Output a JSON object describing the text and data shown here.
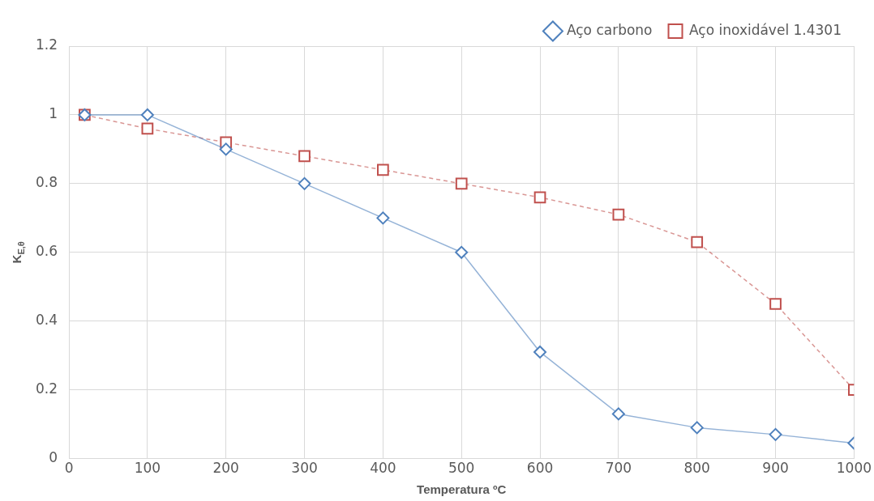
{
  "chart_data": {
    "type": "line",
    "xlabel": "Temperatura ºC",
    "ylabel": "K$_{E,θ}$",
    "x": [
      20,
      100,
      200,
      300,
      400,
      500,
      600,
      700,
      800,
      900,
      1000
    ],
    "series": [
      {
        "name": "Aço carbono",
        "color": "#4f81bd",
        "marker": "diamond",
        "line_style": "solid",
        "values": [
          1,
          1,
          0.9,
          0.8,
          0.7,
          0.6,
          0.31,
          0.13,
          0.09,
          0.07,
          0.045
        ]
      },
      {
        "name": "Aço inoxidável 1.4301",
        "color": "#c0504d",
        "marker": "square",
        "line_style": "dashed",
        "values": [
          1,
          0.96,
          0.92,
          0.88,
          0.84,
          0.8,
          0.76,
          0.71,
          0.63,
          0.45,
          0.2
        ]
      }
    ],
    "xlim": [
      0,
      1000
    ],
    "xticks": [
      0,
      100,
      200,
      300,
      400,
      500,
      600,
      700,
      800,
      900,
      1000
    ],
    "ylim": [
      0,
      1.2
    ],
    "yticks": [
      0,
      0.2,
      0.4,
      0.6,
      0.8,
      1,
      1.2
    ],
    "grid": true,
    "legend": "top right"
  }
}
